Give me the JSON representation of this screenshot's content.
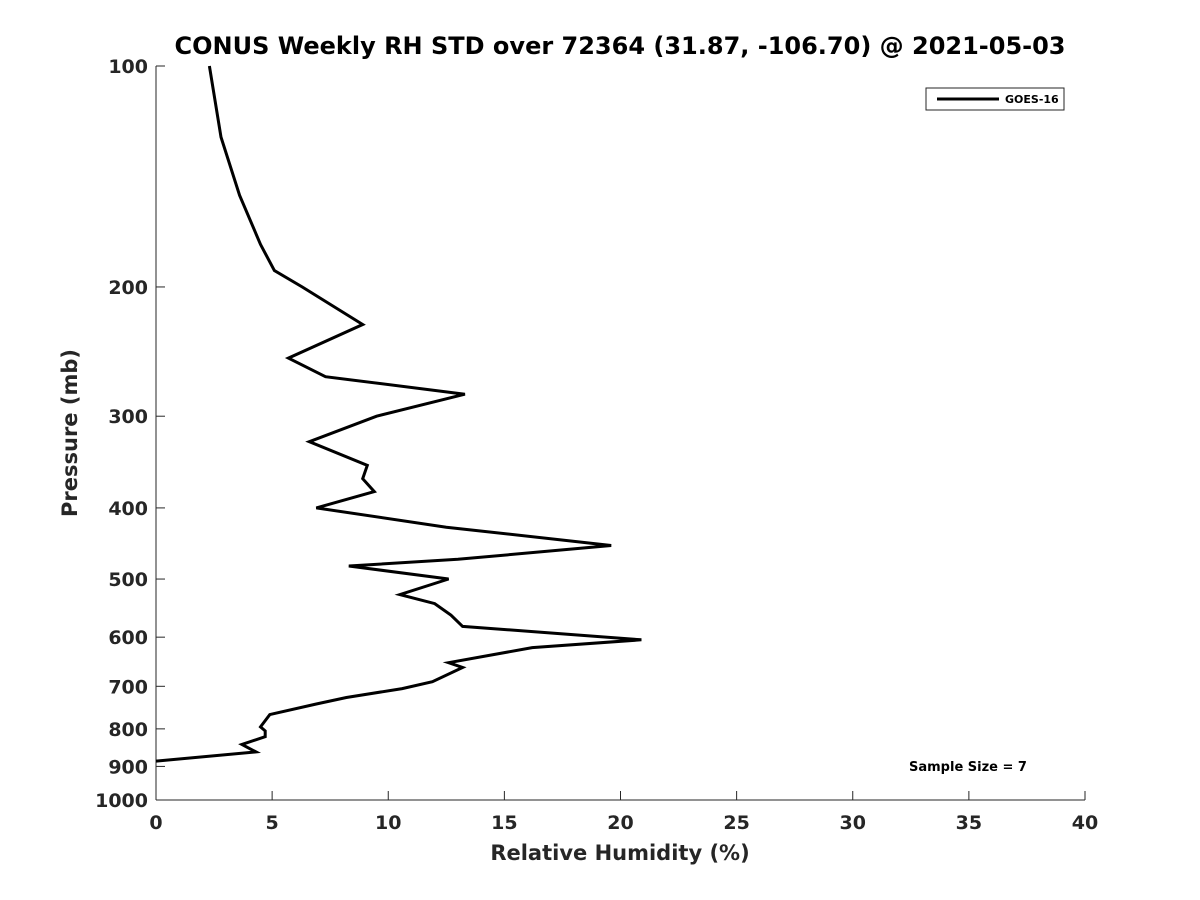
{
  "chart_data": {
    "type": "line",
    "title": "CONUS Weekly RH STD over 72364 (31.87, -106.70) @ 2021-05-03",
    "xlabel": "Relative Humidity (%)",
    "ylabel": "Pressure (mb)",
    "xlim": [
      0,
      40
    ],
    "ylim": [
      100,
      1000
    ],
    "y_scale": "log",
    "y_direction": "reversed",
    "xticks": [
      "0",
      "5",
      "10",
      "15",
      "20",
      "25",
      "30",
      "35",
      "40"
    ],
    "yticks": [
      "100",
      "200",
      "300",
      "400",
      "500",
      "600",
      "700",
      "800",
      "900",
      "1000"
    ],
    "legend_position": "top-right",
    "grid": false,
    "series": [
      {
        "name": "GOES-16",
        "color": "#000000",
        "points": [
          {
            "x": 2.3,
            "y": 100
          },
          {
            "x": 2.8,
            "y": 125
          },
          {
            "x": 3.6,
            "y": 150
          },
          {
            "x": 4.5,
            "y": 175
          },
          {
            "x": 5.1,
            "y": 190
          },
          {
            "x": 6.3,
            "y": 200
          },
          {
            "x": 8.9,
            "y": 225
          },
          {
            "x": 5.7,
            "y": 250
          },
          {
            "x": 7.3,
            "y": 265
          },
          {
            "x": 13.3,
            "y": 280
          },
          {
            "x": 9.5,
            "y": 300
          },
          {
            "x": 6.6,
            "y": 325
          },
          {
            "x": 9.1,
            "y": 350
          },
          {
            "x": 8.9,
            "y": 365
          },
          {
            "x": 9.4,
            "y": 380
          },
          {
            "x": 6.9,
            "y": 400
          },
          {
            "x": 12.5,
            "y": 425
          },
          {
            "x": 19.6,
            "y": 450
          },
          {
            "x": 13.0,
            "y": 470
          },
          {
            "x": 8.3,
            "y": 480
          },
          {
            "x": 12.6,
            "y": 500
          },
          {
            "x": 10.5,
            "y": 525
          },
          {
            "x": 12.0,
            "y": 540
          },
          {
            "x": 12.7,
            "y": 560
          },
          {
            "x": 13.2,
            "y": 580
          },
          {
            "x": 20.9,
            "y": 605
          },
          {
            "x": 16.2,
            "y": 620
          },
          {
            "x": 12.6,
            "y": 650
          },
          {
            "x": 13.2,
            "y": 660
          },
          {
            "x": 11.9,
            "y": 690
          },
          {
            "x": 10.6,
            "y": 705
          },
          {
            "x": 8.2,
            "y": 725
          },
          {
            "x": 6.9,
            "y": 740
          },
          {
            "x": 4.9,
            "y": 765
          },
          {
            "x": 4.5,
            "y": 795
          },
          {
            "x": 4.7,
            "y": 805
          },
          {
            "x": 4.7,
            "y": 820
          },
          {
            "x": 3.7,
            "y": 840
          },
          {
            "x": 4.3,
            "y": 860
          },
          {
            "x": 0.0,
            "y": 885
          }
        ]
      }
    ],
    "annotations": [
      "Sample Size = 7"
    ]
  }
}
